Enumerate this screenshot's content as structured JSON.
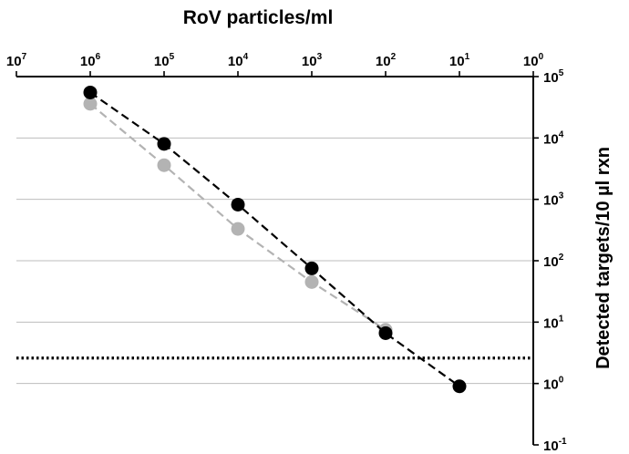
{
  "chart_data": {
    "type": "scatter",
    "title": "RoV particles/ml",
    "xlabel": "",
    "ylabel": "Detected targets/10 µl rxn",
    "x_scale": "log",
    "y_scale": "log",
    "x_reversed": true,
    "x_axis_position": "top",
    "y_axis_position": "right",
    "xlim_exponents": [
      7,
      0
    ],
    "ylim_exponents": [
      -1,
      5
    ],
    "x_tick_labels": [
      {
        "base": "10",
        "exp": "7"
      },
      {
        "base": "10",
        "exp": "6"
      },
      {
        "base": "10",
        "exp": "5"
      },
      {
        "base": "10",
        "exp": "4"
      },
      {
        "base": "10",
        "exp": "3"
      },
      {
        "base": "10",
        "exp": "2"
      },
      {
        "base": "10",
        "exp": "1"
      },
      {
        "base": "10",
        "exp": "0"
      }
    ],
    "y_tick_labels": [
      {
        "base": "10",
        "exp": "5"
      },
      {
        "base": "10",
        "exp": "4"
      },
      {
        "base": "10",
        "exp": "3"
      },
      {
        "base": "10",
        "exp": "2"
      },
      {
        "base": "10",
        "exp": "1"
      },
      {
        "base": "10",
        "exp": "0"
      },
      {
        "base": "10",
        "exp": "-1"
      }
    ],
    "grid": "horizontal",
    "series": [
      {
        "color": "#000000",
        "line_style": "dashed",
        "points": [
          {
            "x": 1000000,
            "y": 55000
          },
          {
            "x": 100000,
            "y": 8000
          },
          {
            "x": 10000,
            "y": 820
          },
          {
            "x": 1000,
            "y": 75
          },
          {
            "x": 100,
            "y": 6.6
          },
          {
            "x": 10,
            "y": 0.9
          }
        ]
      },
      {
        "color": "#b3b3b3",
        "line_style": "dashed",
        "points": [
          {
            "x": 1000000,
            "y": 36000
          },
          {
            "x": 100000,
            "y": 3600
          },
          {
            "x": 10000,
            "y": 330
          },
          {
            "x": 1000,
            "y": 45
          },
          {
            "x": 100,
            "y": 7.5
          }
        ]
      }
    ],
    "threshold_line": {
      "y": 2.6,
      "style": "dotted",
      "color": "#000000"
    }
  }
}
